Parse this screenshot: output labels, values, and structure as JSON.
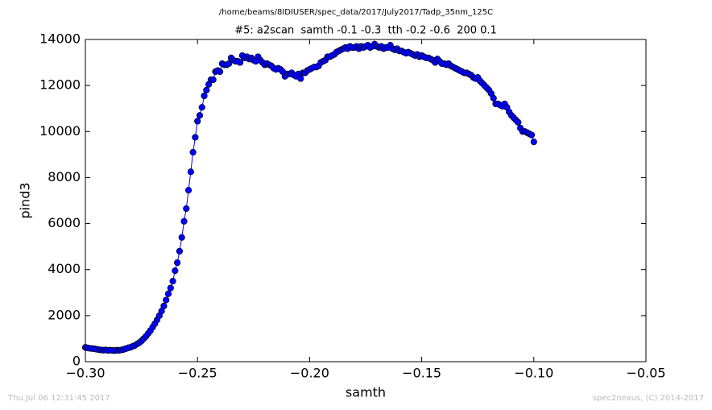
{
  "chart_data": {
    "type": "line",
    "suptitle": "/home/beams/8IDIUSER/spec_data/2017/July2017/Tadp_35nm_125C",
    "title": "#5: a2scan  samth -0.1 -0.3  tth -0.2 -0.6  200 0.1",
    "xlabel": "samth",
    "ylabel": "pind3",
    "footer_left": "Thu Jul 06 12:31:45 2017",
    "footer_right": "spec2nexus, (C) 2014-2017",
    "color": "#0000ff",
    "marker": "circle",
    "xlim": [
      -0.3,
      -0.05
    ],
    "ylim": [
      0,
      14000
    ],
    "xticks": [
      {
        "value": -0.3,
        "label": "−0.30"
      },
      {
        "value": -0.25,
        "label": "−0.25"
      },
      {
        "value": -0.2,
        "label": "−0.20"
      },
      {
        "value": -0.15,
        "label": "−0.15"
      },
      {
        "value": -0.1,
        "label": "−0.10"
      },
      {
        "value": -0.05,
        "label": "−0.05"
      }
    ],
    "yticks": [
      0,
      2000,
      4000,
      6000,
      8000,
      10000,
      12000,
      14000
    ],
    "x": [
      -0.3,
      -0.299,
      -0.298,
      -0.297,
      -0.296,
      -0.295,
      -0.294,
      -0.293,
      -0.292,
      -0.291,
      -0.29,
      -0.289,
      -0.288,
      -0.287,
      -0.286,
      -0.285,
      -0.284,
      -0.283,
      -0.282,
      -0.281,
      -0.28,
      -0.279,
      -0.278,
      -0.277,
      -0.276,
      -0.275,
      -0.274,
      -0.273,
      -0.272,
      -0.271,
      -0.27,
      -0.269,
      -0.268,
      -0.267,
      -0.266,
      -0.265,
      -0.264,
      -0.263,
      -0.262,
      -0.261,
      -0.26,
      -0.259,
      -0.258,
      -0.257,
      -0.256,
      -0.255,
      -0.254,
      -0.253,
      -0.252,
      -0.251,
      -0.25,
      -0.249,
      -0.248,
      -0.247,
      -0.246,
      -0.245,
      -0.244,
      -0.243,
      -0.242,
      -0.241,
      -0.24,
      -0.239,
      -0.238,
      -0.237,
      -0.236,
      -0.235,
      -0.234,
      -0.233,
      -0.232,
      -0.231,
      -0.23,
      -0.229,
      -0.228,
      -0.227,
      -0.226,
      -0.225,
      -0.224,
      -0.223,
      -0.222,
      -0.221,
      -0.22,
      -0.219,
      -0.218,
      -0.217,
      -0.216,
      -0.215,
      -0.214,
      -0.213,
      -0.212,
      -0.211,
      -0.21,
      -0.209,
      -0.208,
      -0.207,
      -0.206,
      -0.205,
      -0.204,
      -0.203,
      -0.202,
      -0.201,
      -0.2,
      -0.199,
      -0.198,
      -0.197,
      -0.196,
      -0.195,
      -0.194,
      -0.193,
      -0.192,
      -0.191,
      -0.19,
      -0.189,
      -0.188,
      -0.187,
      -0.186,
      -0.185,
      -0.184,
      -0.183,
      -0.182,
      -0.181,
      -0.18,
      -0.179,
      -0.178,
      -0.177,
      -0.176,
      -0.175,
      -0.174,
      -0.173,
      -0.172,
      -0.171,
      -0.17,
      -0.169,
      -0.168,
      -0.167,
      -0.166,
      -0.165,
      -0.164,
      -0.163,
      -0.162,
      -0.161,
      -0.16,
      -0.159,
      -0.158,
      -0.157,
      -0.156,
      -0.155,
      -0.154,
      -0.153,
      -0.152,
      -0.151,
      -0.15,
      -0.149,
      -0.148,
      -0.147,
      -0.146,
      -0.145,
      -0.144,
      -0.143,
      -0.142,
      -0.141,
      -0.14,
      -0.139,
      -0.138,
      -0.137,
      -0.136,
      -0.135,
      -0.134,
      -0.133,
      -0.132,
      -0.131,
      -0.13,
      -0.129,
      -0.128,
      -0.127,
      -0.126,
      -0.125,
      -0.124,
      -0.123,
      -0.122,
      -0.121,
      -0.12,
      -0.119,
      -0.118,
      -0.117,
      -0.116,
      -0.115,
      -0.114,
      -0.113,
      -0.112,
      -0.111,
      -0.11,
      -0.109,
      -0.108,
      -0.107,
      -0.106,
      -0.105,
      -0.104,
      -0.103,
      -0.102,
      -0.101,
      -0.1
    ],
    "values": [
      620,
      600,
      580,
      570,
      560,
      540,
      520,
      510,
      500,
      510,
      490,
      500,
      490,
      480,
      500,
      490,
      510,
      530,
      560,
      600,
      620,
      660,
      700,
      760,
      820,
      900,
      1000,
      1100,
      1220,
      1350,
      1500,
      1650,
      1820,
      2000,
      2200,
      2420,
      2680,
      2950,
      3200,
      3500,
      3950,
      4300,
      4800,
      5400,
      6100,
      6650,
      7450,
      8250,
      9100,
      9750,
      10450,
      10700,
      11050,
      11550,
      11800,
      12050,
      12250,
      12250,
      12600,
      12650,
      12600,
      12950,
      12900,
      12900,
      12950,
      13200,
      13100,
      13050,
      13050,
      13000,
      13300,
      13200,
      13250,
      13150,
      13200,
      13100,
      13050,
      13250,
      13100,
      13000,
      12900,
      12950,
      12900,
      12850,
      12750,
      12700,
      12750,
      12700,
      12600,
      12400,
      12500,
      12500,
      12550,
      12450,
      12400,
      12500,
      12300,
      12550,
      12550,
      12650,
      12700,
      12750,
      12800,
      12800,
      12850,
      13000,
      13050,
      13100,
      13250,
      13250,
      13300,
      13350,
      13450,
      13500,
      13550,
      13600,
      13650,
      13600,
      13700,
      13650,
      13650,
      13700,
      13600,
      13700,
      13650,
      13700,
      13750,
      13650,
      13700,
      13800,
      13700,
      13650,
      13700,
      13600,
      13650,
      13650,
      13750,
      13600,
      13550,
      13600,
      13500,
      13500,
      13450,
      13400,
      13450,
      13400,
      13350,
      13300,
      13350,
      13250,
      13300,
      13250,
      13200,
      13200,
      13150,
      13100,
      13000,
      13150,
      13050,
      12950,
      12950,
      12900,
      12950,
      12850,
      12800,
      12750,
      12700,
      12650,
      12600,
      12550,
      12550,
      12500,
      12450,
      12350,
      12300,
      12350,
      12200,
      12100,
      12000,
      11900,
      11800,
      11650,
      11450,
      11200,
      11200,
      11150,
      11100,
      11200,
      11050,
      10850,
      10700,
      10600,
      10500,
      10400,
      10150,
      10000,
      10000,
      9950,
      9900,
      9850,
      9550
    ]
  }
}
